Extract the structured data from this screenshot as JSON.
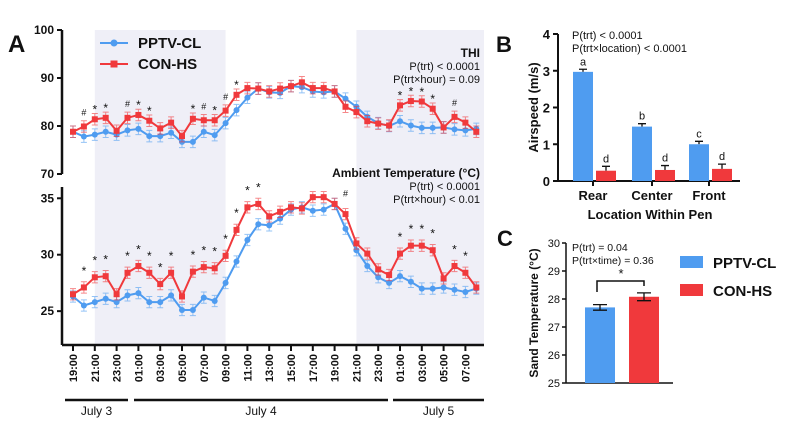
{
  "colors": {
    "pptv": "#4f9cf0",
    "con": "#f0393c",
    "shade": "#efeff7",
    "axis": "#111111"
  },
  "legend": [
    "PPTV-CL",
    "CON-HS"
  ],
  "chart_data": [
    {
      "panel": "A",
      "type": "line",
      "x_tick_labels": [
        "19:00",
        "21:00",
        "23:00",
        "01:00",
        "03:00",
        "05:00",
        "07:00",
        "09:00",
        "11:00",
        "13:00",
        "15:00",
        "17:00",
        "19:00",
        "21:00",
        "23:00",
        "01:00",
        "03:00",
        "05:00",
        "07:00"
      ],
      "date_labels": [
        "July 3",
        "July 4",
        "July 5"
      ],
      "shaded_periods": [
        [
          "21:00 July 3",
          "09:00 July 4"
        ],
        [
          "21:00 July 4",
          "08:00 July 5"
        ]
      ],
      "x_start": "19:00 July 3",
      "x_step_hours": 1,
      "subplots": [
        {
          "title": "THI",
          "stats": [
            "P(trt) < 0.0001",
            "P(trt×hour) = 0.09"
          ],
          "ylim": [
            70,
            100
          ],
          "yticks": [
            70,
            80,
            90,
            100
          ],
          "series": [
            {
              "name": "PPTV-CL",
              "values": [
                78.8,
                77.8,
                78.2,
                78.8,
                78.2,
                79.1,
                79.4,
                77.9,
                77.9,
                78.6,
                76.7,
                76.7,
                78.8,
                78.1,
                80.6,
                83.3,
                85.9,
                87.8,
                87.0,
                86.9,
                88.3,
                88.1,
                87.2,
                87.0,
                87.2,
                85.7,
                84.0,
                81.9,
                80.6,
                80.0,
                81.0,
                80.1,
                79.6,
                79.6,
                79.7,
                79.3,
                79.1,
                79.4
              ]
            },
            {
              "name": "CON-HS",
              "values": [
                78.8,
                79.9,
                81.4,
                81.7,
                79.0,
                81.7,
                82.3,
                81.1,
                79.5,
                80.7,
                77.9,
                81.5,
                81.2,
                81.2,
                83.2,
                86.5,
                87.9,
                87.8,
                87.2,
                87.8,
                88.3,
                89.1,
                87.9,
                87.9,
                87.2,
                84.0,
                82.9,
                81.0,
                80.5,
                80.1,
                84.3,
                85.2,
                85.1,
                83.6,
                79.7,
                81.9,
                80.7,
                78.8
              ]
            }
          ],
          "error": 1.2,
          "marks": [
            [
              1,
              "#"
            ],
            [
              2,
              "*"
            ],
            [
              3,
              "*"
            ],
            [
              5,
              "#"
            ],
            [
              6,
              "*"
            ],
            [
              7,
              "*"
            ],
            [
              11,
              "*"
            ],
            [
              12,
              "#"
            ],
            [
              13,
              "*"
            ],
            [
              14,
              "#"
            ],
            [
              15,
              "*"
            ],
            [
              30,
              "*"
            ],
            [
              31,
              "*"
            ],
            [
              32,
              "*"
            ],
            [
              33,
              "*"
            ],
            [
              35,
              "#"
            ]
          ]
        },
        {
          "title": "Ambient Temperature (°C)",
          "stats": [
            "P(trt) < 0.0001",
            "P(trt×hour) < 0.01"
          ],
          "ylim": [
            22,
            36
          ],
          "yticks": [
            25,
            30,
            35
          ],
          "series": [
            {
              "name": "PPTV-CL",
              "values": [
                26.3,
                25.5,
                25.8,
                26.1,
                25.8,
                26.4,
                26.6,
                25.8,
                25.8,
                26.4,
                25.1,
                25.1,
                26.2,
                25.9,
                27.5,
                29.4,
                31.3,
                32.7,
                32.6,
                33.2,
                34.0,
                34.2,
                33.9,
                34.0,
                34.5,
                32.3,
                30.4,
                29.0,
                28.0,
                27.5,
                28.1,
                27.6,
                27.0,
                27.0,
                27.1,
                26.9,
                26.7,
                27.0
              ]
            },
            {
              "name": "CON-HS",
              "values": [
                26.5,
                27.1,
                28.0,
                28.1,
                26.5,
                28.4,
                29.0,
                28.4,
                27.4,
                28.4,
                26.3,
                28.5,
                28.9,
                28.8,
                29.9,
                32.2,
                34.2,
                34.5,
                33.4,
                33.8,
                34.2,
                34.1,
                35.1,
                35.1,
                34.5,
                33.6,
                31.0,
                30.1,
                28.7,
                28.2,
                30.1,
                30.8,
                30.8,
                30.4,
                27.9,
                29.0,
                28.4,
                27.1
              ]
            }
          ],
          "error": 0.5,
          "marks": [
            [
              1,
              "*"
            ],
            [
              2,
              "*"
            ],
            [
              3,
              "*"
            ],
            [
              5,
              "*"
            ],
            [
              6,
              "*"
            ],
            [
              7,
              "*"
            ],
            [
              8,
              "*"
            ],
            [
              9,
              "*"
            ],
            [
              11,
              "*"
            ],
            [
              12,
              "*"
            ],
            [
              13,
              "*"
            ],
            [
              14,
              "*"
            ],
            [
              15,
              "*"
            ],
            [
              16,
              "*"
            ],
            [
              17,
              "*"
            ],
            [
              25,
              "#"
            ],
            [
              30,
              "*"
            ],
            [
              31,
              "*"
            ],
            [
              32,
              "*"
            ],
            [
              33,
              "*"
            ],
            [
              35,
              "*"
            ],
            [
              36,
              "*"
            ]
          ]
        }
      ]
    },
    {
      "panel": "B",
      "type": "bar",
      "categories": [
        "Rear",
        "Center",
        "Front"
      ],
      "xlabel": "Location Within Pen",
      "ylabel": "Airspeed (m/s)",
      "ylim": [
        0,
        4
      ],
      "yticks": [
        0,
        1,
        2,
        3,
        4
      ],
      "stats": [
        "P(trt) < 0.0001",
        "P(trt×location) < 0.0001"
      ],
      "series": [
        {
          "name": "PPTV-CL",
          "values": [
            2.97,
            1.48,
            1.0
          ],
          "errors": [
            0.07,
            0.08,
            0.08
          ],
          "letters": [
            "a",
            "b",
            "c"
          ]
        },
        {
          "name": "CON-HS",
          "values": [
            0.28,
            0.3,
            0.33
          ],
          "errors": [
            0.12,
            0.12,
            0.13
          ],
          "letters": [
            "d",
            "d",
            "d"
          ]
        }
      ]
    },
    {
      "panel": "C",
      "type": "bar",
      "ylabel": "Sand Temperature (°C)",
      "ylim": [
        25,
        30
      ],
      "yticks": [
        25,
        26,
        27,
        28,
        29,
        30
      ],
      "stats": [
        "P(trt) = 0.04",
        "P(trt×time) = 0.36"
      ],
      "significance": "*",
      "series": [
        {
          "name": "PPTV-CL",
          "value": 27.7,
          "error": 0.1
        },
        {
          "name": "CON-HS",
          "value": 28.08,
          "error": 0.14
        }
      ]
    }
  ]
}
